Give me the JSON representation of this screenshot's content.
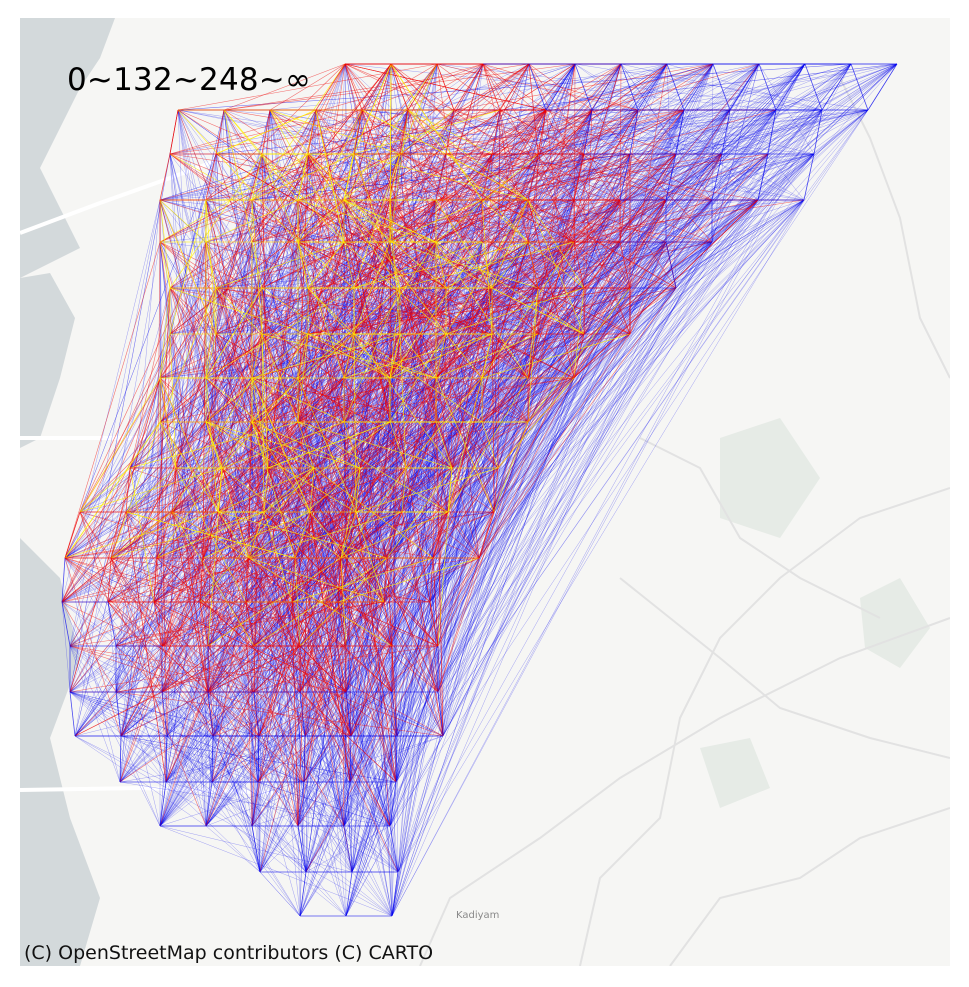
{
  "map": {
    "legend_label": "0~132~248~∞",
    "attribution": "(C) OpenStreetMap contributors (C) CARTO",
    "place_label": "Kadiyam"
  },
  "flow_colors": {
    "short": "#ffee00",
    "medium": "#ee0000",
    "long": "#0000ee"
  },
  "basemap_colors": {
    "land": "#f6f6f4",
    "water": "#d3d9db",
    "road": "#ffffff",
    "minor_road": "#e2e2e2",
    "green": "#e6ebe6"
  }
}
